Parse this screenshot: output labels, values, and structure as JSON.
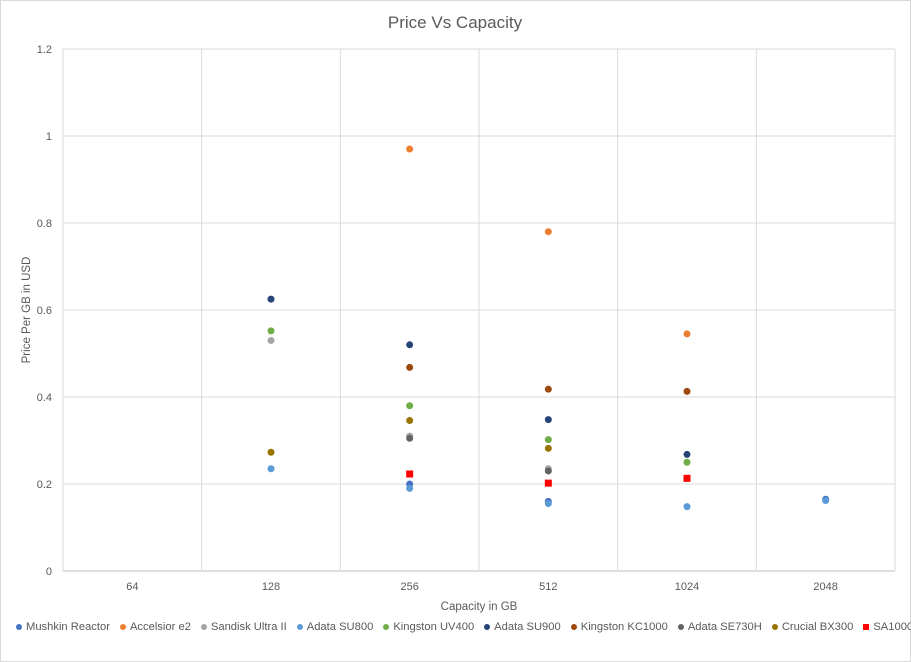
{
  "chart_data": {
    "type": "scatter",
    "title": "Price Vs Capacity",
    "xlabel": "Capacity in GB",
    "ylabel": "Price Per GB in USD",
    "categories": [
      "64",
      "128",
      "256",
      "512",
      "1024",
      "2048"
    ],
    "ylim": [
      0,
      1.2
    ],
    "yticks": [
      "0",
      "0.2",
      "0.4",
      "0.6",
      "0.8",
      "1",
      "1.2"
    ],
    "grid": true,
    "legend_position": "bottom",
    "series": [
      {
        "name": "Mushkin Reactor",
        "color": "#4472c4",
        "marker": "circle",
        "points": [
          {
            "x": "256",
            "y": 0.2
          },
          {
            "x": "512",
            "y": 0.16
          },
          {
            "x": "2048",
            "y": 0.165
          }
        ]
      },
      {
        "name": "Accelsior e2",
        "color": "#ed7d31",
        "marker": "circle",
        "points": [
          {
            "x": "256",
            "y": 0.97
          },
          {
            "x": "512",
            "y": 0.78
          },
          {
            "x": "1024",
            "y": 0.545
          }
        ]
      },
      {
        "name": "Sandisk Ultra II",
        "color": "#a5a5a5",
        "marker": "circle",
        "points": [
          {
            "x": "128",
            "y": 0.53
          },
          {
            "x": "256",
            "y": 0.31
          },
          {
            "x": "512",
            "y": 0.235
          }
        ]
      },
      {
        "name": "Adata SU800",
        "color": "#5b9bd5",
        "marker": "circle",
        "points": [
          {
            "x": "128",
            "y": 0.235
          },
          {
            "x": "256",
            "y": 0.19
          },
          {
            "x": "512",
            "y": 0.155
          },
          {
            "x": "1024",
            "y": 0.148
          },
          {
            "x": "2048",
            "y": 0.162
          }
        ]
      },
      {
        "name": "Kingston UV400",
        "color": "#70ad47",
        "marker": "circle",
        "points": [
          {
            "x": "128",
            "y": 0.552
          },
          {
            "x": "256",
            "y": 0.38
          },
          {
            "x": "512",
            "y": 0.302
          },
          {
            "x": "1024",
            "y": 0.25
          }
        ]
      },
      {
        "name": "Adata SU900",
        "color": "#264478",
        "marker": "circle",
        "points": [
          {
            "x": "128",
            "y": 0.625
          },
          {
            "x": "256",
            "y": 0.52
          },
          {
            "x": "512",
            "y": 0.348
          },
          {
            "x": "1024",
            "y": 0.268
          }
        ]
      },
      {
        "name": "Kingston KC1000",
        "color": "#9e480e",
        "marker": "circle",
        "points": [
          {
            "x": "256",
            "y": 0.468
          },
          {
            "x": "512",
            "y": 0.418
          },
          {
            "x": "1024",
            "y": 0.413
          }
        ]
      },
      {
        "name": "Adata SE730H",
        "color": "#636363",
        "marker": "circle",
        "points": [
          {
            "x": "256",
            "y": 0.305
          },
          {
            "x": "512",
            "y": 0.23
          }
        ]
      },
      {
        "name": "Crucial BX300",
        "color": "#997300",
        "marker": "circle",
        "points": [
          {
            "x": "128",
            "y": 0.273
          },
          {
            "x": "256",
            "y": 0.346
          },
          {
            "x": "512",
            "y": 0.282
          }
        ]
      },
      {
        "name": "SA1000",
        "color": "#ff0000",
        "marker": "square",
        "points": [
          {
            "x": "256",
            "y": 0.223
          },
          {
            "x": "512",
            "y": 0.202
          },
          {
            "x": "1024",
            "y": 0.213
          }
        ]
      }
    ]
  }
}
